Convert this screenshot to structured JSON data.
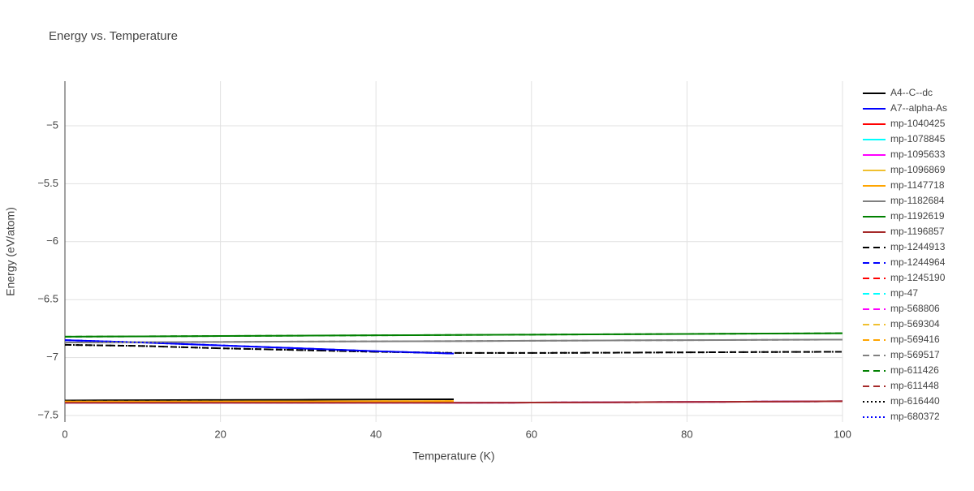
{
  "chart_data": {
    "type": "line",
    "title": "Energy vs. Temperature",
    "x_label": "Temperature (K)",
    "y_label": "Energy (eV/atom)",
    "x": [
      0,
      10,
      20,
      30,
      40,
      50,
      60,
      70,
      80,
      90,
      100
    ],
    "xlim": [
      0,
      100
    ],
    "xticks": [
      0,
      20,
      40,
      60,
      80,
      100
    ],
    "ylim": [
      -7.556,
      -4.615
    ],
    "yticks": [
      {
        "value": -5,
        "label": "−5"
      },
      {
        "value": -5.5,
        "label": "−5.5"
      },
      {
        "value": -6,
        "label": "−6"
      },
      {
        "value": -6.5,
        "label": "−6.5"
      },
      {
        "value": -7,
        "label": "−7"
      },
      {
        "value": -7.5,
        "label": "−7.5"
      }
    ],
    "grid": true,
    "legend": "right",
    "series": [
      {
        "name": "A4--C--dc",
        "color": "#000000",
        "dash": "solid",
        "values": [
          -7.37,
          -7.368,
          -7.366,
          -7.364,
          -7.362,
          -7.36,
          null,
          null,
          null,
          null,
          null
        ]
      },
      {
        "name": "A7--alpha-As",
        "color": "#0000ff",
        "dash": "solid",
        "values": [
          -6.85,
          -6.87,
          -6.895,
          -6.92,
          -6.945,
          -6.965,
          null,
          null,
          null,
          null,
          null
        ]
      },
      {
        "name": "mp-1040425",
        "color": "#ff0000",
        "dash": "solid",
        "values": [
          -7.39,
          -7.39,
          -7.39,
          -7.39,
          -7.39,
          -7.39,
          -7.388,
          -7.386,
          -7.383,
          -7.38,
          -7.377
        ]
      },
      {
        "name": "mp-1078845",
        "color": "#00ffff",
        "dash": "solid",
        "values": [
          -7.39,
          -7.39,
          -7.39,
          -7.39,
          -7.39,
          -7.39,
          -7.388,
          -7.386,
          -7.383,
          -7.38,
          -7.377
        ]
      },
      {
        "name": "mp-1095633",
        "color": "#ff00ff",
        "dash": "solid",
        "values": [
          -7.39,
          -7.39,
          -7.39,
          -7.39,
          -7.39,
          -7.39,
          -7.388,
          -7.386,
          -7.383,
          -7.38,
          -7.377
        ]
      },
      {
        "name": "mp-1096869",
        "color": "#f0c030",
        "dash": "solid",
        "values": [
          -7.38,
          -7.38,
          -7.379,
          -7.378,
          -7.377,
          -7.376,
          null,
          null,
          null,
          null,
          null
        ]
      },
      {
        "name": "mp-1147718",
        "color": "#ffa500",
        "dash": "solid",
        "values": [
          -7.38,
          -7.38,
          -7.379,
          -7.378,
          -7.377,
          -7.376,
          null,
          null,
          null,
          null,
          null
        ]
      },
      {
        "name": "mp-1182684",
        "color": "#808080",
        "dash": "solid",
        "values": [
          -6.87,
          -6.867,
          -6.865,
          -6.862,
          -6.86,
          -6.858,
          -6.855,
          -6.852,
          -6.85,
          -6.847,
          -6.845
        ]
      },
      {
        "name": "mp-1192619",
        "color": "#008000",
        "dash": "solid",
        "values": [
          -6.82,
          -6.817,
          -6.814,
          -6.811,
          -6.808,
          -6.805,
          -6.802,
          -6.799,
          -6.796,
          -6.793,
          -6.79
        ]
      },
      {
        "name": "mp-1196857",
        "color": "#a52a2a",
        "dash": "solid",
        "values": [
          -7.39,
          -7.39,
          -7.39,
          -7.39,
          -7.39,
          -7.39,
          -7.388,
          -7.386,
          -7.383,
          -7.38,
          -7.377
        ]
      },
      {
        "name": "mp-1244913",
        "color": "#000000",
        "dash": "dash",
        "values": [
          -6.89,
          -6.9,
          -6.92,
          -6.935,
          -6.95,
          -6.96,
          -6.96,
          -6.958,
          -6.955,
          -6.952,
          -6.95
        ]
      },
      {
        "name": "mp-1244964",
        "color": "#0000ff",
        "dash": "dash",
        "values": [
          -6.85,
          -6.87,
          -6.895,
          -6.92,
          -6.945,
          -6.965,
          null,
          null,
          null,
          null,
          null
        ]
      },
      {
        "name": "mp-1245190",
        "color": "#ff0000",
        "dash": "dash",
        "values": [
          -7.39,
          -7.39,
          -7.39,
          -7.39,
          -7.39,
          -7.39,
          -7.388,
          -7.386,
          -7.383,
          -7.38,
          -7.377
        ]
      },
      {
        "name": "mp-47",
        "color": "#00ffff",
        "dash": "dash",
        "values": [
          -7.39,
          -7.39,
          -7.39,
          -7.39,
          -7.39,
          -7.39,
          -7.388,
          -7.386,
          -7.383,
          -7.38,
          -7.377
        ]
      },
      {
        "name": "mp-568806",
        "color": "#ff00ff",
        "dash": "dash",
        "values": [
          -7.39,
          -7.39,
          -7.39,
          -7.39,
          -7.39,
          -7.39,
          -7.388,
          -7.386,
          -7.383,
          -7.38,
          -7.377
        ]
      },
      {
        "name": "mp-569304",
        "color": "#f0c030",
        "dash": "dash",
        "values": [
          -7.38,
          -7.38,
          -7.379,
          -7.378,
          -7.377,
          -7.376,
          null,
          null,
          null,
          null,
          null
        ]
      },
      {
        "name": "mp-569416",
        "color": "#ffa500",
        "dash": "dash",
        "values": [
          -7.38,
          -7.38,
          -7.379,
          -7.378,
          -7.377,
          -7.376,
          null,
          null,
          null,
          null,
          null
        ]
      },
      {
        "name": "mp-569517",
        "color": "#808080",
        "dash": "dash",
        "values": [
          -6.87,
          -6.867,
          -6.865,
          -6.862,
          -6.86,
          -6.858,
          -6.855,
          -6.852,
          -6.85,
          -6.847,
          -6.845
        ]
      },
      {
        "name": "mp-611426",
        "color": "#008000",
        "dash": "dash",
        "values": [
          -6.82,
          -6.817,
          -6.814,
          -6.811,
          -6.808,
          -6.805,
          -6.802,
          -6.799,
          -6.796,
          -6.793,
          -6.79
        ]
      },
      {
        "name": "mp-611448",
        "color": "#a52a2a",
        "dash": "dash",
        "values": [
          -7.39,
          -7.39,
          -7.39,
          -7.39,
          -7.39,
          -7.39,
          -7.388,
          -7.386,
          -7.383,
          -7.38,
          -7.377
        ]
      },
      {
        "name": "mp-616440",
        "color": "#000000",
        "dash": "dot",
        "values": [
          -6.89,
          -6.9,
          -6.92,
          -6.935,
          -6.95,
          -6.96,
          -6.96,
          -6.958,
          -6.955,
          -6.952,
          -6.95
        ]
      },
      {
        "name": "mp-680372",
        "color": "#0000ff",
        "dash": "dot",
        "values": [
          -6.85,
          -6.87,
          -6.895,
          -6.92,
          -6.945,
          -6.965,
          null,
          null,
          null,
          null,
          null
        ]
      }
    ]
  }
}
